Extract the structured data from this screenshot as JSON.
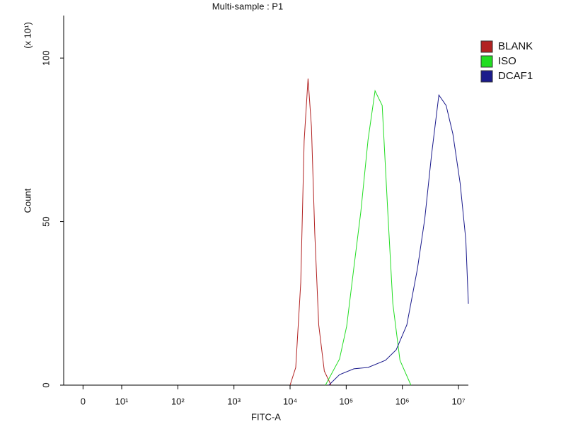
{
  "chart_data": {
    "type": "line",
    "title": "Multi-sample : P1",
    "x_label": "FITC-A",
    "y_label": "Count",
    "y_multiplier": "(x 10¹)",
    "x_scale": "log",
    "xlim": [
      -5,
      15000000
    ],
    "xticks": [
      {
        "value": 0,
        "label": "0"
      },
      {
        "value": 10,
        "label": "10¹"
      },
      {
        "value": 100,
        "label": "10²"
      },
      {
        "value": 1000,
        "label": "10³"
      },
      {
        "value": 10000,
        "label": "10⁴"
      },
      {
        "value": 100000,
        "label": "10⁵"
      },
      {
        "value": 1000000,
        "label": "10⁶"
      },
      {
        "value": 10000000,
        "label": "10⁷"
      }
    ],
    "ylim": [
      0,
      113
    ],
    "yticks": [
      0,
      50,
      100
    ],
    "legend": "right",
    "series": [
      {
        "name": "BLANK",
        "color": "#b22222",
        "x": [
          10000,
          12600,
          15500,
          17800,
          20900,
          24000,
          27500,
          32400,
          40700,
          53700
        ],
        "values": [
          0,
          5.4,
          31.4,
          74.7,
          93.7,
          79,
          46.5,
          18.4,
          4.3,
          0
        ]
      },
      {
        "name": "ISO",
        "color": "#22dd22",
        "x": [
          42700,
          75900,
          102000,
          137000,
          182000,
          245000,
          326000,
          438000,
          550000,
          676000,
          905000,
          1420000
        ],
        "values": [
          0,
          8,
          18,
          36,
          53,
          75,
          90,
          85.5,
          53,
          25,
          7.6,
          0
        ]
      },
      {
        "name": "DCAF1",
        "color": "#1a1a8c",
        "x": [
          49000,
          75900,
          137000,
          245000,
          501000,
          776000,
          1200000,
          1860000,
          2510000,
          3310000,
          4470000,
          6030000,
          7940000,
          10700000,
          13500000,
          15000000
        ],
        "values": [
          0,
          3.2,
          5,
          5.4,
          7.6,
          10.8,
          18.4,
          35.7,
          50.9,
          70.3,
          88.7,
          85.5,
          76.8,
          61.7,
          44.4,
          24.9
        ]
      }
    ]
  }
}
